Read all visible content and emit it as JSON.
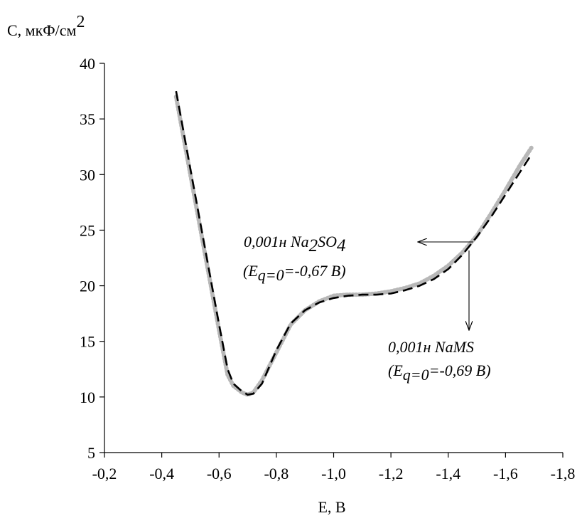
{
  "chart_data": {
    "type": "line",
    "xlabel": "E, В",
    "ylabel": {
      "prefix": "C, мкФ/см",
      "sup": "2"
    },
    "xlim": [
      -0.2,
      -1.8
    ],
    "ylim": [
      5,
      40
    ],
    "x_axis_reversed": true,
    "grid": false,
    "x_ticks": [
      "-0,2",
      "-0,4",
      "-0,6",
      "-0,8",
      "-1,0",
      "-1,2",
      "-1,4",
      "-1,6",
      "-1,8"
    ],
    "y_ticks": [
      "5",
      "10",
      "15",
      "20",
      "25",
      "30",
      "35",
      "40"
    ],
    "series": [
      {
        "style": "dotted",
        "color": "#b8b8b8",
        "x": [
          -0.45,
          -0.5,
          -0.55,
          -0.6,
          -0.63,
          -0.65,
          -0.68,
          -0.7,
          -0.72,
          -0.75,
          -0.8,
          -0.85,
          -0.9,
          -0.95,
          -1.0,
          -1.05,
          -1.1,
          -1.15,
          -1.2,
          -1.25,
          -1.3,
          -1.35,
          -1.4,
          -1.45,
          -1.5,
          -1.55,
          -1.6,
          -1.65,
          -1.69
        ],
        "y": [
          37.0,
          30.0,
          23.0,
          16.0,
          12.0,
          11.0,
          10.4,
          10.2,
          10.4,
          11.5,
          14.0,
          16.5,
          17.8,
          18.6,
          19.1,
          19.2,
          19.2,
          19.3,
          19.5,
          19.8,
          20.2,
          20.9,
          21.8,
          23.0,
          24.5,
          26.5,
          28.6,
          30.8,
          32.4
        ]
      },
      {
        "style": "dashed",
        "color": "#000000",
        "x": [
          -0.45,
          -0.5,
          -0.55,
          -0.6,
          -0.63,
          -0.65,
          -0.68,
          -0.7,
          -0.72,
          -0.75,
          -0.8,
          -0.85,
          -0.9,
          -0.95,
          -1.0,
          -1.05,
          -1.1,
          -1.15,
          -1.2,
          -1.25,
          -1.3,
          -1.35,
          -1.4,
          -1.45,
          -1.5,
          -1.55,
          -1.6,
          -1.65,
          -1.69
        ],
        "y": [
          37.5,
          30.5,
          23.5,
          16.5,
          12.5,
          11.2,
          10.5,
          10.2,
          10.3,
          11.2,
          14.2,
          16.6,
          17.8,
          18.5,
          18.9,
          19.1,
          19.2,
          19.2,
          19.3,
          19.6,
          20.0,
          20.6,
          21.5,
          22.8,
          24.4,
          26.2,
          28.2,
          30.2,
          31.8
        ]
      }
    ],
    "annotations": [
      {
        "line1_parts": [
          "0,001н Na",
          "2",
          "SO",
          "4"
        ],
        "line2_parts": [
          "(E",
          "q=0",
          "=-0,67 В)"
        ],
        "arrow": "points from the curve near E = -1,48 V left to the label"
      },
      {
        "line1_parts": [
          "0,001н NaMS"
        ],
        "line2_parts": [
          "(E",
          "q=0",
          "=-0,69 В)"
        ],
        "arrow": "points from the curve near E = -1,48 V down to the label"
      }
    ]
  }
}
